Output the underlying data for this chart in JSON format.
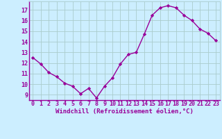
{
  "x": [
    0,
    1,
    2,
    3,
    4,
    5,
    6,
    7,
    8,
    9,
    10,
    11,
    12,
    13,
    14,
    15,
    16,
    17,
    18,
    19,
    20,
    21,
    22,
    23
  ],
  "y": [
    12.5,
    11.9,
    11.1,
    10.7,
    10.1,
    9.8,
    9.1,
    9.6,
    8.7,
    9.8,
    10.6,
    11.9,
    12.8,
    13.0,
    14.7,
    16.5,
    17.2,
    17.4,
    17.2,
    16.5,
    16.0,
    15.2,
    14.8,
    14.1
  ],
  "line_color": "#990099",
  "marker": "D",
  "marker_size": 2.2,
  "bg_color": "#cceeff",
  "grid_color": "#aacccc",
  "xlabel": "Windchill (Refroidissement éolien,°C)",
  "xlabel_color": "#990099",
  "tick_color": "#990099",
  "yticks": [
    9,
    10,
    11,
    12,
    13,
    14,
    15,
    16,
    17
  ],
  "ylim": [
    8.5,
    17.8
  ],
  "xlim": [
    -0.5,
    23.5
  ],
  "axis_label_fontsize": 6.5,
  "tick_fontsize": 6.0,
  "linewidth": 1.0
}
